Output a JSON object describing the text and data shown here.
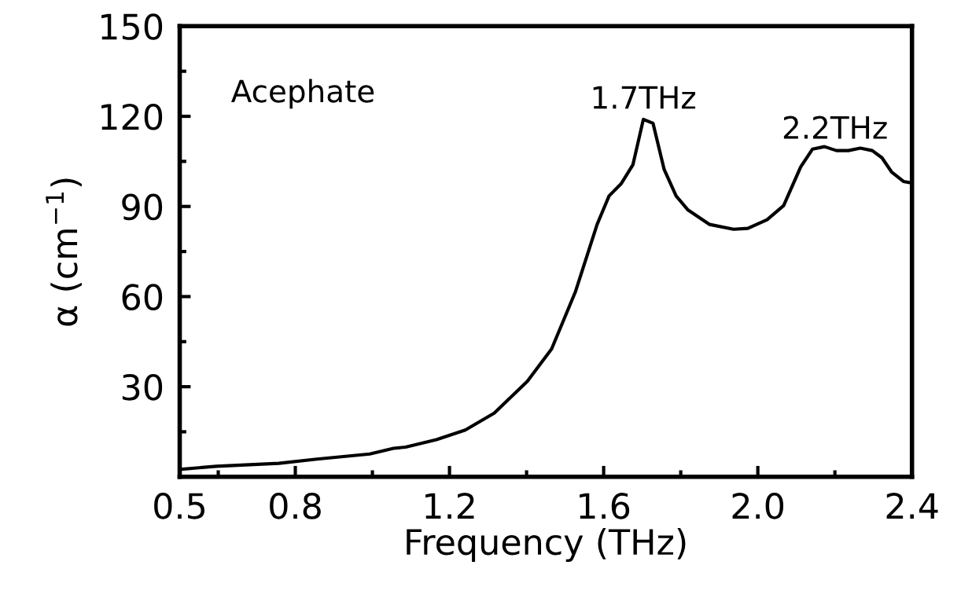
{
  "chart_data": {
    "type": "line",
    "xlabel": "Frequency (THz)",
    "ylabel": "α (cm$^{−1}$)",
    "annotations": [
      "Acephate",
      {
        "text": "1.7THz",
        "x": 1.703,
        "y": 119
      },
      {
        "text": "2.2THz",
        "x": 2.2,
        "y": 109
      }
    ],
    "xlim": [
      0.5,
      2.4
    ],
    "ylim": [
      0,
      150
    ],
    "xticks": [
      0.5,
      {
        "value": 0.6,
        "label": null
      },
      0.8,
      {
        "value": 1.0,
        "label": null
      },
      1.2,
      {
        "value": 1.4,
        "label": null
      },
      1.6,
      {
        "value": 1.8,
        "label": null
      },
      {
        "value": 2.0,
        "label": "2.0"
      },
      {
        "value": 2.2,
        "label": null
      },
      2.4
    ],
    "yticks": [
      {
        "value": 15,
        "label": null
      },
      30,
      {
        "value": 45,
        "label": null
      },
      60,
      {
        "value": 75,
        "label": null
      },
      90,
      {
        "value": 105,
        "label": null
      },
      120,
      {
        "value": 135,
        "label": null
      },
      150
    ],
    "grid": false,
    "legend": false,
    "marker": "none",
    "line_style": "solid",
    "series": [
      {
        "color": "#000000",
        "x": [
          0.5,
          0.595,
          0.757,
          0.856,
          0.993,
          1.055,
          1.086,
          1.166,
          1.241,
          1.316,
          1.402,
          1.465,
          1.527,
          1.583,
          1.614,
          1.645,
          1.676,
          1.703,
          1.728,
          1.757,
          1.788,
          1.819,
          1.875,
          1.937,
          1.974,
          2.024,
          2.067,
          2.111,
          2.142,
          2.173,
          2.204,
          2.235,
          2.266,
          2.297,
          2.322,
          2.347,
          2.378,
          2.396
        ],
        "values": [
          2.5,
          3.5,
          4.5,
          5.9,
          7.6,
          9.5,
          9.9,
          12.4,
          15.6,
          21.2,
          31.8,
          42.6,
          61.7,
          84,
          93.5,
          97.5,
          103.9,
          119,
          117.7,
          102.3,
          93.5,
          88.8,
          84,
          82.4,
          82.7,
          85.6,
          90.3,
          103.1,
          109.1,
          109.9,
          108.6,
          108.6,
          109.4,
          108.6,
          106.2,
          101.5,
          98.3,
          97.9
        ]
      }
    ]
  }
}
